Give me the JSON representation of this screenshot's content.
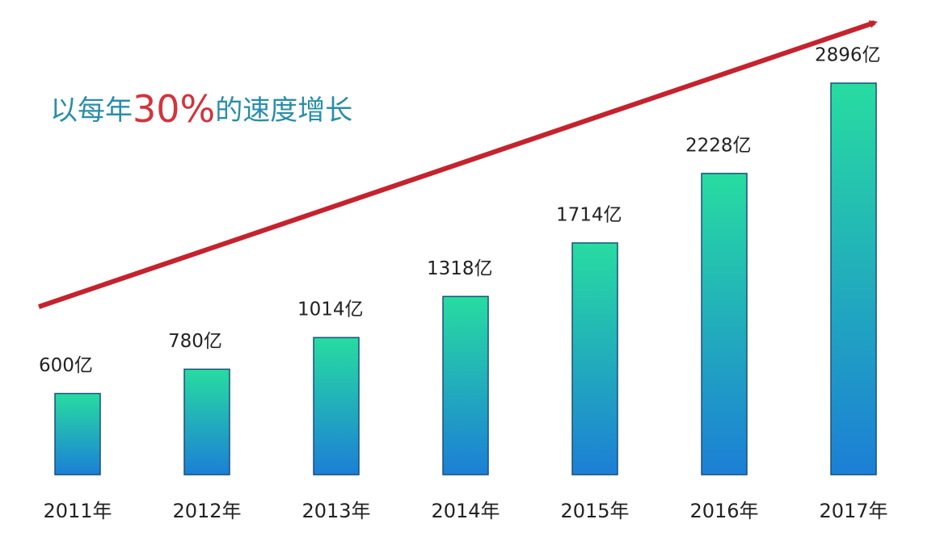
{
  "chart_data": {
    "type": "bar",
    "annotation": [
      "以每年",
      "30%",
      "的速度增长"
    ],
    "categories": [
      "2011年",
      "2012年",
      "2013年",
      "2014年",
      "2015年",
      "2016年",
      "2017年"
    ],
    "values": [
      600,
      780,
      1014,
      1318,
      1714,
      2228,
      2896
    ],
    "value_labels": [
      "600亿",
      "780亿",
      "1014亿",
      "1318亿",
      "1714亿",
      "2228亿",
      "2896亿"
    ],
    "gradient": [
      "#27dca0",
      "#1c7fd6"
    ],
    "trend_color": "#c4232e"
  }
}
